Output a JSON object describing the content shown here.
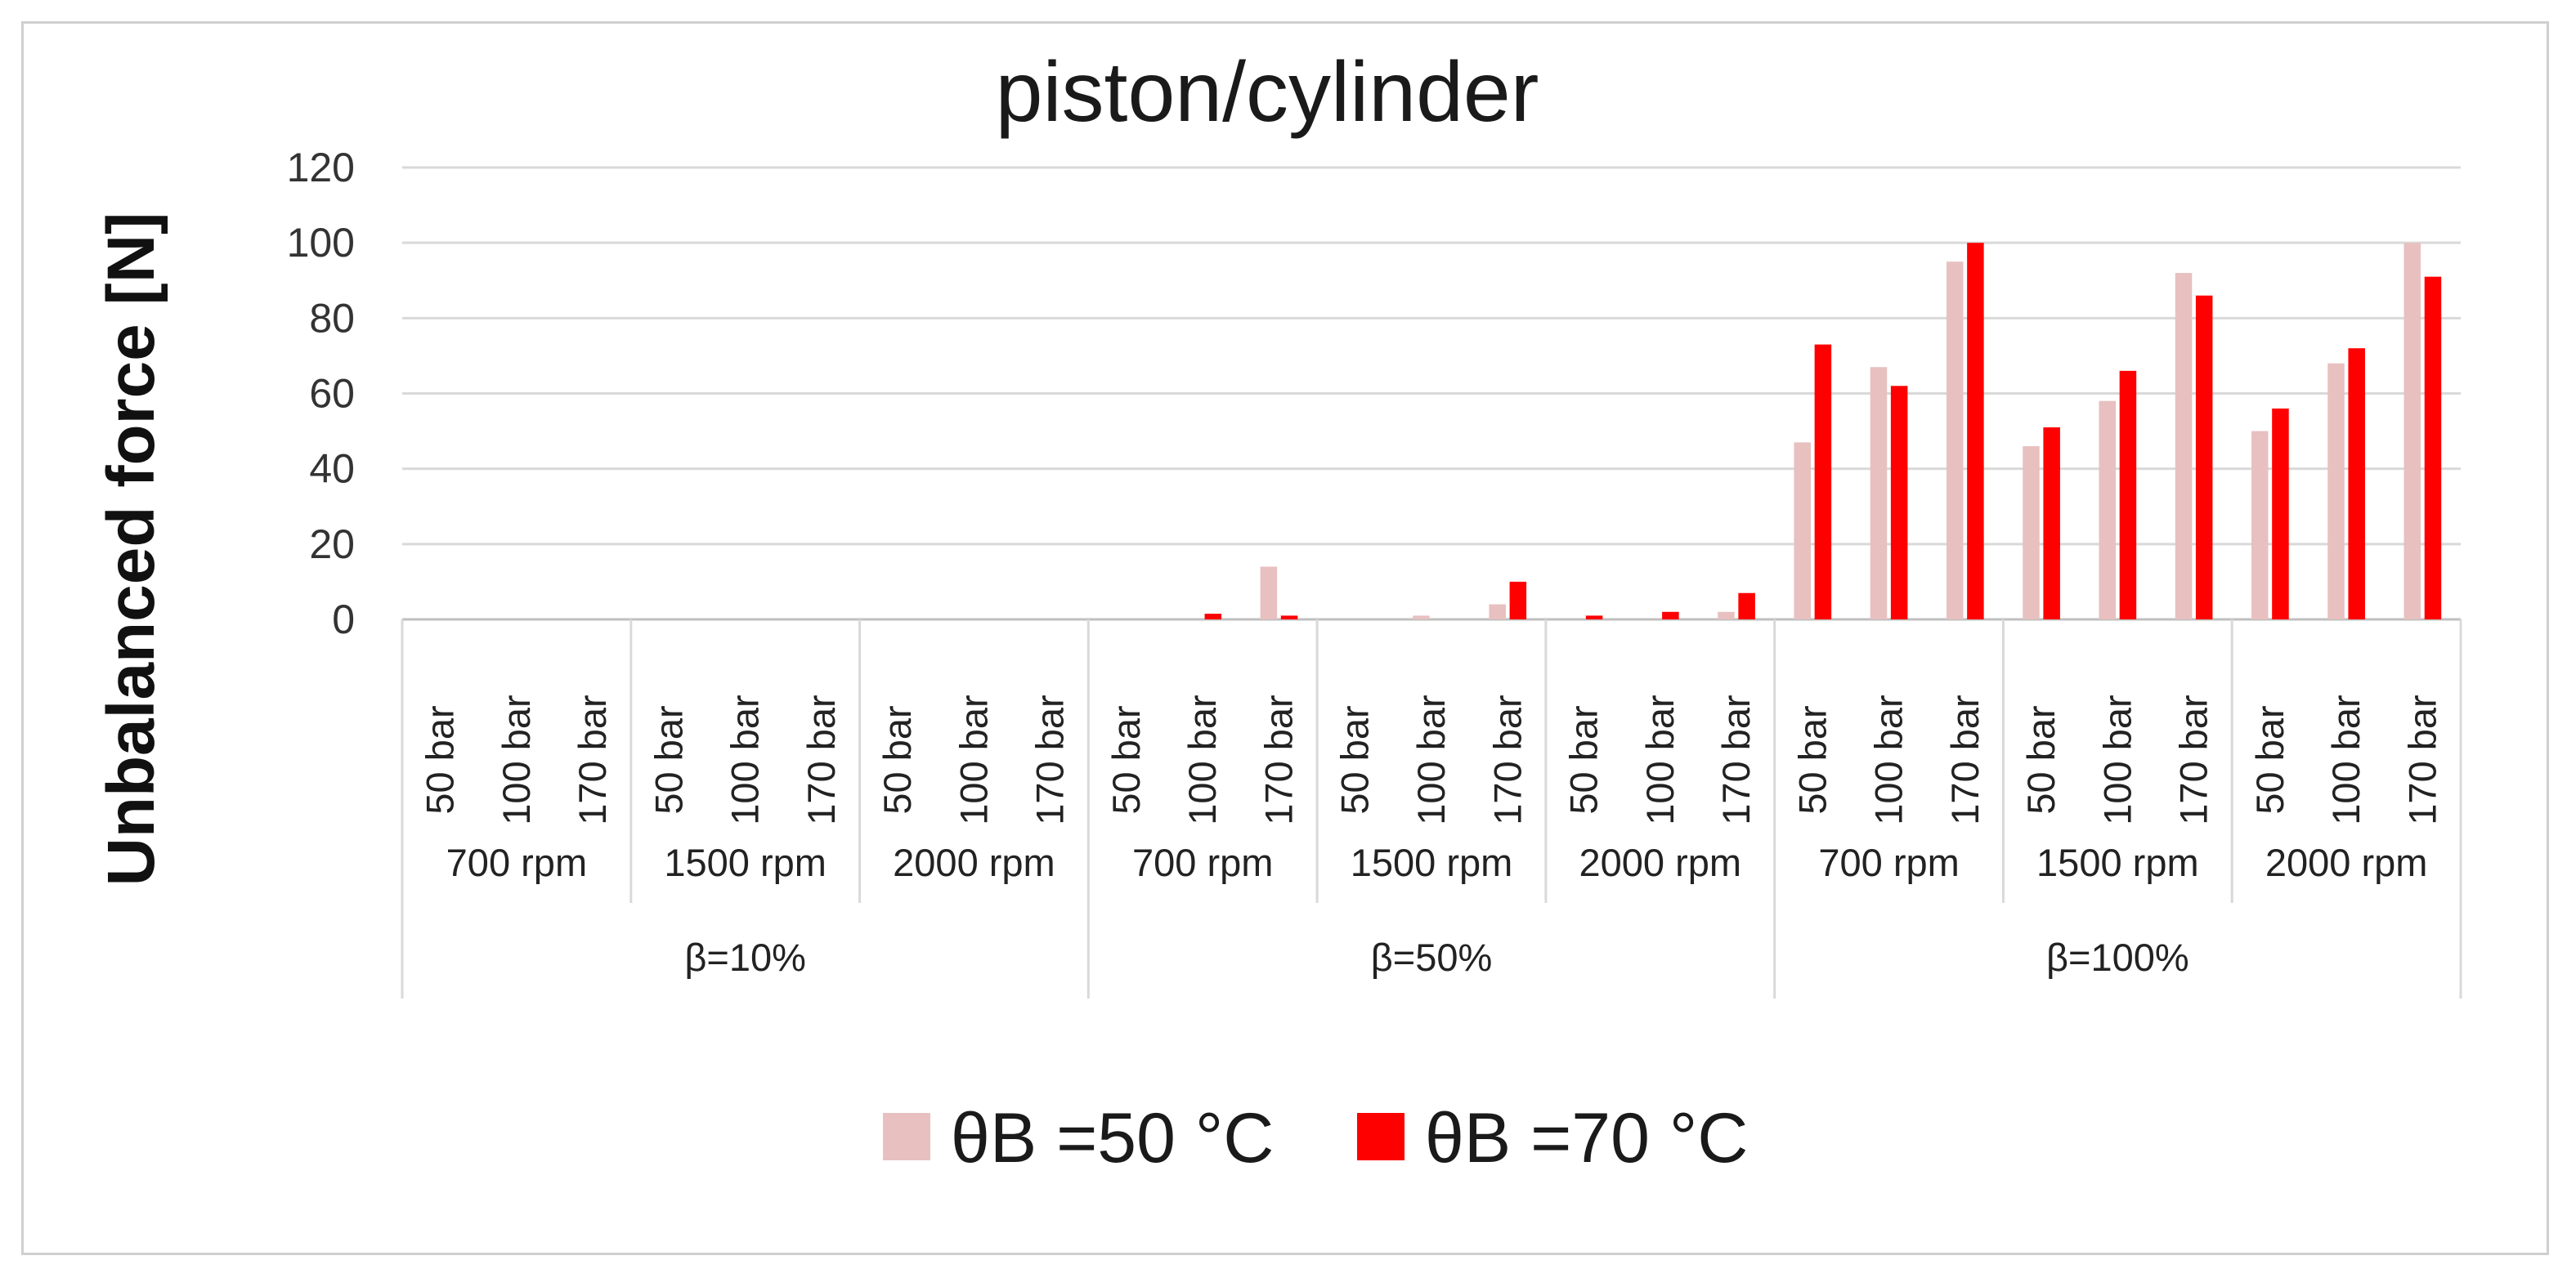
{
  "chart_data": {
    "type": "bar",
    "title": "piston/cylinder",
    "xlabel": "",
    "ylabel": "Unbalanced force [N]",
    "ylim": [
      0,
      120
    ],
    "yticks": [
      0,
      20,
      40,
      60,
      80,
      100,
      120
    ],
    "grid": true,
    "legend_position": "bottom",
    "groups": [
      {
        "label": "β=10%",
        "subgroups": [
          {
            "label": "700 rpm",
            "categories": [
              "50 bar",
              "100 bar",
              "170 bar"
            ]
          },
          {
            "label": "1500 rpm",
            "categories": [
              "50 bar",
              "100 bar",
              "170 bar"
            ]
          },
          {
            "label": "2000 rpm",
            "categories": [
              "50 bar",
              "100 bar",
              "170 bar"
            ]
          }
        ]
      },
      {
        "label": "β=50%",
        "subgroups": [
          {
            "label": "700 rpm",
            "categories": [
              "50 bar",
              "100 bar",
              "170 bar"
            ]
          },
          {
            "label": "1500 rpm",
            "categories": [
              "50 bar",
              "100 bar",
              "170 bar"
            ]
          },
          {
            "label": "2000 rpm",
            "categories": [
              "50 bar",
              "100 bar",
              "170 bar"
            ]
          }
        ]
      },
      {
        "label": "β=100%",
        "subgroups": [
          {
            "label": "700 rpm",
            "categories": [
              "50 bar",
              "100 bar",
              "170 bar"
            ]
          },
          {
            "label": "1500 rpm",
            "categories": [
              "50 bar",
              "100 bar",
              "170 bar"
            ]
          },
          {
            "label": "2000 rpm",
            "categories": [
              "50 bar",
              "100 bar",
              "170 bar"
            ]
          }
        ]
      }
    ],
    "series": [
      {
        "name": "θB =50 °C",
        "color": "#e8c0c0",
        "values": [
          0,
          0,
          0,
          0,
          0,
          0,
          0,
          0,
          0,
          0,
          0,
          14,
          0,
          1,
          4,
          0,
          0,
          2,
          47,
          67,
          95,
          46,
          58,
          92,
          50,
          68,
          100
        ]
      },
      {
        "name": "θB =70 °C",
        "color": "#ff0000",
        "values": [
          0,
          0,
          0,
          0,
          0,
          0,
          0,
          0,
          0,
          0,
          1.5,
          1,
          0,
          0,
          10,
          1,
          2,
          7,
          73,
          62,
          100,
          51,
          66,
          86,
          56,
          72,
          91
        ]
      }
    ]
  }
}
